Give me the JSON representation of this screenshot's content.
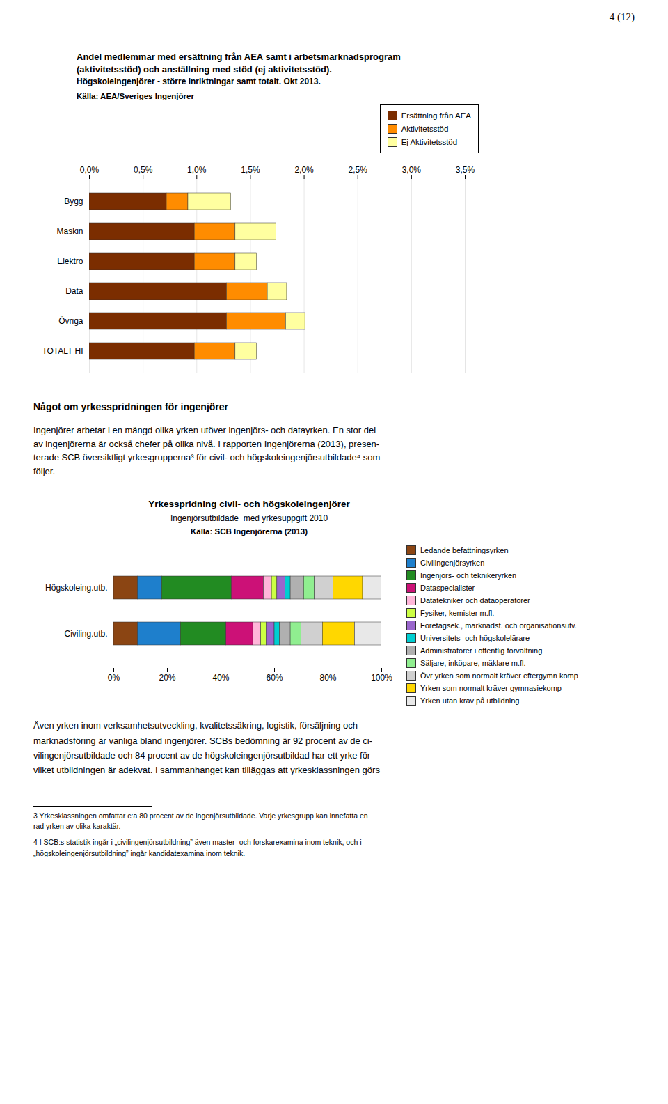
{
  "chart_data": [
    {
      "type": "bar",
      "orientation": "horizontal",
      "stacked": true,
      "title": "Andel medlemmar med ersättning från AEA samt i arbetsmarknadsprogram\n(aktivitetsstöd) och anställning med stöd (ej aktivitetsstöd).",
      "subtitle": "Högskoleingenjörer - större inriktningar samt totalt. Okt 2013.",
      "annotations": [
        "4 (12)",
        "Källa: AEA/Sveriges Ingenjörer"
      ],
      "categories": [
        "Bygg",
        "Maskin",
        "Elektro",
        "Data",
        "Övriga",
        "TOTALT HI"
      ],
      "series": [
        {
          "name": "Ersättning från AEA",
          "color": "#7B2D00",
          "values": [
            0.0072,
            0.0098,
            0.0098,
            0.0128,
            0.0128,
            0.0098
          ]
        },
        {
          "name": "Aktivitetsstöd",
          "color": "#FF8C00",
          "values": [
            0.002,
            0.0038,
            0.0038,
            0.0038,
            0.0055,
            0.0038
          ]
        },
        {
          "name": "Ej Aktivitetsstöd",
          "color": "#FFFFA0",
          "values": [
            0.004,
            0.0038,
            0.002,
            0.0018,
            0.0018,
            0.002
          ]
        }
      ],
      "xlim": [
        0,
        0.035
      ],
      "xticks": [
        {
          "value": 0.0,
          "label": "0,0%"
        },
        {
          "value": 0.005,
          "label": "0,5%"
        },
        {
          "value": 0.01,
          "label": "1,0%"
        },
        {
          "value": 0.015,
          "label": "1,5%"
        },
        {
          "value": 0.02,
          "label": "2,0%"
        },
        {
          "value": 0.025,
          "label": "2,5%"
        },
        {
          "value": 0.03,
          "label": "3,0%"
        },
        {
          "value": 0.035,
          "label": "3,5%"
        }
      ],
      "grid": true,
      "legend": "upper right"
    },
    {
      "type": "bar",
      "orientation": "horizontal",
      "stacked": true,
      "title": "Yrkesspridning civil- och högskoleingenjörer",
      "subtitle": "Ingenjörsutbildade  med yrkesuppgift 2010",
      "annotations": [
        "Något om yrkesspridningen för ingenjörer",
        "Ingenjörer arbetar i en mängd olika yrken utöver ingenjörs- och datayrken. En stor del\nav ingenjörerna är också chefer på olika nivå. I rapporten Ingenjörerna (2013), presen-\nterade SCB översiktligt yrkesgrupperna³ för civil- och högskoleingenjörsutbildade⁴ som\nföljer.",
        "Källa: SCB Ingenjörerna (2013)",
        "Även yrken inom verksamhetsutveckling, kvalitetssäkring, logistik, försäljning och",
        "marknadsföring är vanliga bland ingenjörer. SCBs bedömning är 92 procent av de ci-",
        "vilingenjörsutbildade och 84 procent av de högskoleingenjörsutbildad har ett yrke för",
        "vilket utbildningen är adekvat. I sammanhanget kan tilläggas att yrkesklassningen görs",
        "3 Yrkesklassningen omfattar c:a 80 procent av de ingenjörsutbildade. Varje yrkesgrupp kan innefatta en",
        "rad yrken av olika karaktär.",
        "4 I SCB:s statistik ingår i „civilingenjörsutbildning” även master- och forskarexamina inom teknik, och i",
        "„högskoleingenjörsutbildning” ingår kandidatexamina inom teknik."
      ],
      "categories": [
        "Högskoleing.utb.",
        "Civiling.utb."
      ],
      "series": [
        {
          "name": "Ledande befattningsyrken",
          "color": "#8B4513",
          "values": [
            0.09,
            0.09
          ]
        },
        {
          "name": "Civilingenjörsyrken",
          "color": "#1E7FCC",
          "values": [
            0.09,
            0.16
          ]
        },
        {
          "name": "Ingenjörs- och teknikeryrken",
          "color": "#228B22",
          "values": [
            0.26,
            0.17
          ]
        },
        {
          "name": "Dataspecialister",
          "color": "#CC1177",
          "values": [
            0.12,
            0.1
          ]
        },
        {
          "name": "Datatekniker och dataoperatörer",
          "color": "#FFB6D9",
          "values": [
            0.03,
            0.03
          ]
        },
        {
          "name": "Fysiker, kemister m.fl.",
          "color": "#CCFF44",
          "values": [
            0.02,
            0.02
          ]
        },
        {
          "name": "Företagsek., marknadsf. och organisationsutv.",
          "color": "#9966CC",
          "values": [
            0.03,
            0.03
          ]
        },
        {
          "name": "Universitets- och högskolelärare",
          "color": "#00CED1",
          "values": [
            0.02,
            0.02
          ]
        },
        {
          "name": "Administratörer i offentlig förvaltning",
          "color": "#B0B0B0",
          "values": [
            0.05,
            0.04
          ]
        },
        {
          "name": "Säljare, inköpare, mäklare m.fl.",
          "color": "#90EE90",
          "values": [
            0.04,
            0.04
          ]
        },
        {
          "name": "Övr yrken som normalt kräver eftergymn komp",
          "color": "#D0D0D0",
          "values": [
            0.07,
            0.08
          ]
        },
        {
          "name": "Yrken som normalt kräver gymnasiekomp",
          "color": "#FFD700",
          "values": [
            0.11,
            0.12
          ]
        },
        {
          "name": "Yrken utan krav på utbildning",
          "color": "#E8E8E8",
          "values": [
            0.07,
            0.1
          ]
        }
      ],
      "xlim": [
        0,
        1
      ],
      "xticks": [
        {
          "value": 0,
          "label": "0%"
        },
        {
          "value": 0.2,
          "label": "20%"
        },
        {
          "value": 0.4,
          "label": "40%"
        },
        {
          "value": 0.6,
          "label": "60%"
        },
        {
          "value": 0.8,
          "label": "80%"
        },
        {
          "value": 1.0,
          "label": "100%"
        }
      ],
      "grid": false,
      "legend": "right"
    }
  ]
}
